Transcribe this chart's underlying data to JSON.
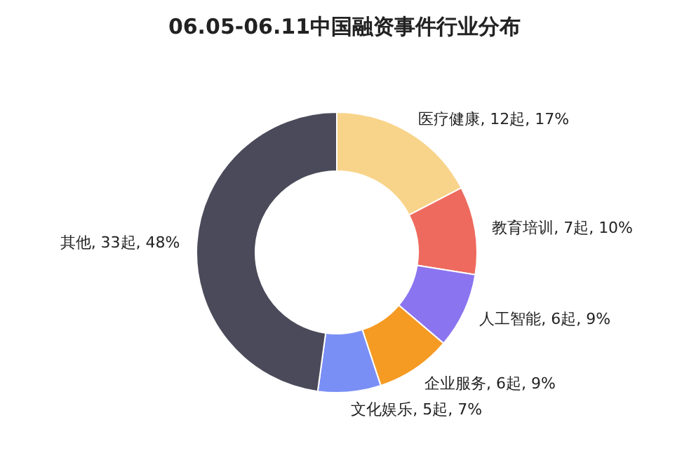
{
  "chart_data": {
    "type": "donut",
    "title": "06.05-06.11中国融资事件行业分布",
    "categories": [
      "医疗健康",
      "教育培训",
      "人工智能",
      "企业服务",
      "文化娱乐",
      "其他"
    ],
    "values": [
      12,
      7,
      6,
      6,
      5,
      33
    ],
    "colors": [
      "#f8d48a",
      "#ee6a5e",
      "#8b74f0",
      "#f59a22",
      "#7a8ff5",
      "#4a4a5a"
    ],
    "value_labels": [
      "12起, 17%",
      "7起, 10%",
      "6起, 9%",
      "6起, 9%",
      "5起, 7%",
      "33起, 48%"
    ]
  }
}
